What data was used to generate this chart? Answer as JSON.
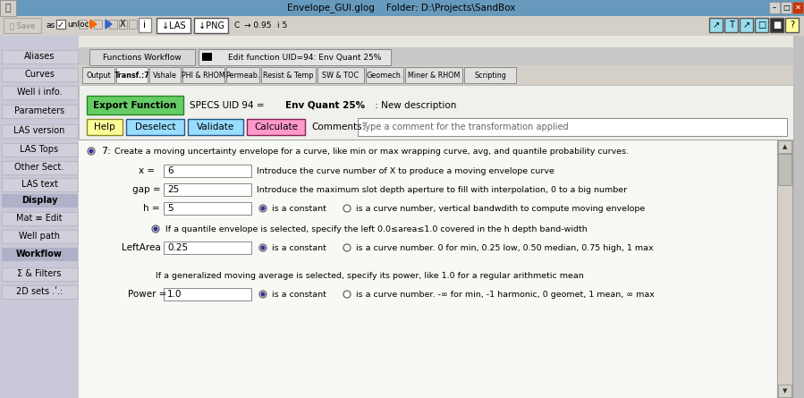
{
  "title": "Envelope_GUI.glog    Folder: D:\\Projects\\SandBox",
  "bg_color": "#c0c0c0",
  "title_bar_color": "#6699bb",
  "left_panel_bg": "#c8c8d8",
  "main_bg": "#e8e8e0",
  "tab1_labels": [
    "Functions Workflow",
    "Edit function UID=94: Env Quant 25%"
  ],
  "tab2_labels": [
    "Output",
    "Transf.:7",
    "Vshale",
    "PHI & RHOM",
    "Permeab.",
    "Resist & Temp",
    "SW & TOC",
    "Geomech.",
    "Miner & RHOM",
    "Scripting"
  ],
  "left_buttons": [
    "Aliases",
    "Curves",
    "Well i info.",
    "Parameters",
    "LAS version",
    "LAS Tops",
    "Other Sect.",
    "LAS text",
    "Display",
    "Mat ≡ Edit",
    "Well path",
    "Workflow",
    "Σ & Filters",
    "2D sets .ʹ.:"
  ],
  "export_btn_color": "#66cc66",
  "help_btn_color": "#ffff99",
  "deselect_btn_color": "#99ddff",
  "validate_btn_color": "#99ddff",
  "calculate_btn_color": "#ff99cc",
  "specs_text": "SPECS UID 94 = Env Quant 25% : New description",
  "specs_bold": "Env Quant 25%",
  "comments_placeholder": "Type a comment for the transformation applied",
  "description_7": "Create a moving uncertainty envelope for a curve, like min or max wrapping curve, avg, and quantile probability curves.",
  "x_label": "x =",
  "x_value": "6",
  "x_desc": "Introduce the curve number of X to produce a moving envelope curve",
  "gap_label": "gap =",
  "gap_value": "25",
  "gap_desc": "Introduce the maximum slot depth aperture to fill with interpolation, 0 to a big number",
  "h_label": "h =",
  "h_value": "5",
  "h_desc1": "is a constant",
  "h_desc2": "is a curve number, vertical bandwdith to compute moving envelope",
  "quantile_text": "If a quantile envelope is selected, specify the left 0.0≤area≤1.0 covered in the h depth band-width",
  "leftarea_label": "LeftArea",
  "leftarea_value": "0.25",
  "leftarea_desc1": "is a constant",
  "leftarea_desc2": "is a curve number. 0 for min, 0.25 low, 0.50 median, 0.75 high, 1 max",
  "power_pretext": "If a generalized moving average is selected, specify its power, like 1.0 for a regular arithmetic mean",
  "power_label": "Power =",
  "power_value": "1.0",
  "power_desc1": "is a constant",
  "power_desc2": "is a curve number. -∞ for min, -1 harmonic, 0 geomet, 1 mean, ∞ max",
  "toolbar_right_syms": [
    "↗",
    "T",
    "↗",
    "□",
    "■",
    "?"
  ],
  "toolbar_right_colors": [
    "#99ddee",
    "#99ddee",
    "#99ddee",
    "#99ddee",
    "#333333",
    "#ffff99"
  ]
}
